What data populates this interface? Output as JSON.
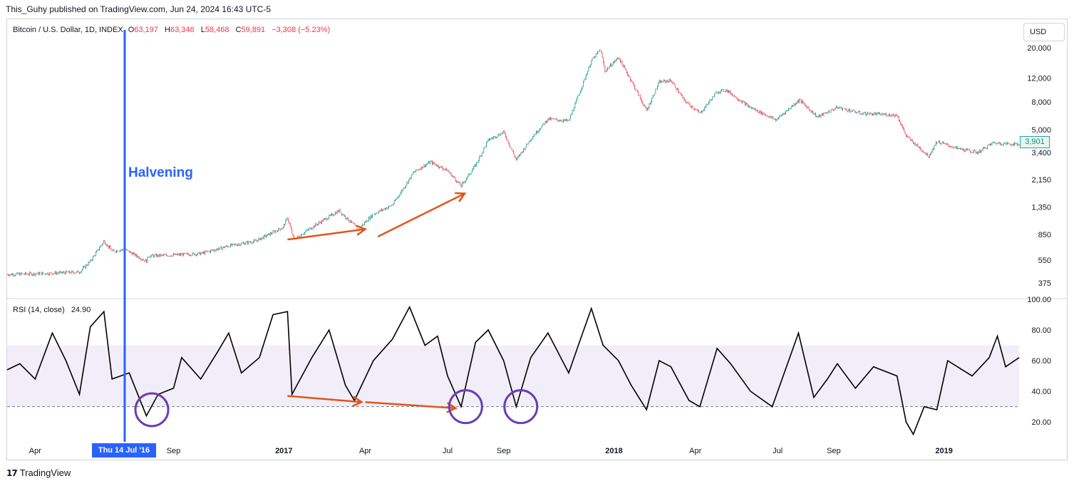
{
  "attribution": "This_Guhy published on TradingView.com, Jun 24, 2024 16:43 UTC-5",
  "symbol": {
    "name": "Bitcoin / U.S. Dollar, 1D, INDEX",
    "o_label": "O",
    "o_value": "63,197",
    "h_label": "H",
    "h_value": "63,346",
    "l_label": "L",
    "l_value": "58,468",
    "c_label": "C",
    "c_value": "59,891",
    "change": "−3,308 (−5.23%)"
  },
  "currency_button": "USD",
  "last_price_tag": "3,901",
  "annotation_halvening": "Halvening",
  "crosshair_date": "Thu 14 Jul '16",
  "rsi_legend": {
    "name": "RSI (14, close)",
    "value": "24.90"
  },
  "branding": "TradingView",
  "colors": {
    "accent": "#2962ff",
    "up": "#089981",
    "down": "#f23645",
    "arrow": "#e0561a",
    "circle": "#6a3db8"
  },
  "chart_data": [
    {
      "type": "candlestick",
      "title": "Bitcoin / U.S. Dollar, 1D, INDEX",
      "y_scale": "log",
      "ylim": [
        320,
        24000
      ],
      "y_ticks": [
        "20,000",
        "12,000",
        "8,000",
        "5,000",
        "3,400",
        "2,150",
        "1,350",
        "850",
        "550",
        "375"
      ],
      "y_tick_values": [
        20000,
        12000,
        8000,
        5000,
        3400,
        2150,
        1350,
        850,
        550,
        375
      ],
      "x_ticks": [
        "Apr",
        "Sep",
        "2017",
        "Apr",
        "Jul",
        "Sep",
        "2018",
        "Apr",
        "Jul",
        "Sep",
        "2019"
      ],
      "x_tick_dates": [
        "2016-04-01",
        "2016-09-01",
        "2017-01-01",
        "2017-04-01",
        "2017-07-01",
        "2017-09-01",
        "2018-01-01",
        "2018-04-01",
        "2018-07-01",
        "2018-09-01",
        "2019-01-01"
      ],
      "x_range": [
        "2016-03-01",
        "2019-03-25"
      ],
      "halvening_date": "2016-07-09",
      "close_path": [
        [
          "2016-03-01",
          432
        ],
        [
          "2016-04-15",
          440
        ],
        [
          "2016-05-20",
          450
        ],
        [
          "2016-06-01",
          540
        ],
        [
          "2016-06-16",
          760
        ],
        [
          "2016-06-25",
          640
        ],
        [
          "2016-07-09",
          660
        ],
        [
          "2016-08-02",
          540
        ],
        [
          "2016-08-04",
          590
        ],
        [
          "2016-09-01",
          600
        ],
        [
          "2016-10-01",
          615
        ],
        [
          "2016-11-01",
          700
        ],
        [
          "2016-12-01",
          760
        ],
        [
          "2016-12-31",
          960
        ],
        [
          "2017-01-05",
          1130
        ],
        [
          "2017-01-12",
          780
        ],
        [
          "2017-02-01",
          960
        ],
        [
          "2017-03-03",
          1270
        ],
        [
          "2017-03-24",
          930
        ],
        [
          "2017-04-10",
          1200
        ],
        [
          "2017-05-01",
          1400
        ],
        [
          "2017-05-25",
          2450
        ],
        [
          "2017-06-12",
          2900
        ],
        [
          "2017-07-01",
          2500
        ],
        [
          "2017-07-16",
          1930
        ],
        [
          "2017-08-01",
          2750
        ],
        [
          "2017-08-15",
          4200
        ],
        [
          "2017-09-01",
          4800
        ],
        [
          "2017-09-15",
          3000
        ],
        [
          "2017-10-01",
          4300
        ],
        [
          "2017-10-20",
          6000
        ],
        [
          "2017-11-12",
          5800
        ],
        [
          "2017-11-20",
          8000
        ],
        [
          "2017-12-07",
          16000
        ],
        [
          "2017-12-17",
          19500
        ],
        [
          "2017-12-22",
          13500
        ],
        [
          "2018-01-06",
          17000
        ],
        [
          "2018-01-20",
          11500
        ],
        [
          "2018-02-06",
          6900
        ],
        [
          "2018-02-20",
          11200
        ],
        [
          "2018-03-05",
          11500
        ],
        [
          "2018-03-20",
          8200
        ],
        [
          "2018-04-06",
          6600
        ],
        [
          "2018-04-25",
          9500
        ],
        [
          "2018-05-05",
          9800
        ],
        [
          "2018-05-30",
          7400
        ],
        [
          "2018-06-29",
          5900
        ],
        [
          "2018-07-25",
          8300
        ],
        [
          "2018-08-14",
          6200
        ],
        [
          "2018-09-05",
          7300
        ],
        [
          "2018-10-01",
          6600
        ],
        [
          "2018-11-10",
          6400
        ],
        [
          "2018-11-20",
          4500
        ],
        [
          "2018-12-15",
          3200
        ],
        [
          "2018-12-24",
          4100
        ],
        [
          "2019-01-15",
          3650
        ],
        [
          "2019-02-07",
          3400
        ],
        [
          "2019-02-24",
          4000
        ],
        [
          "2019-03-25",
          3901
        ]
      ],
      "last_price": 3901
    },
    {
      "type": "line",
      "title": "RSI (14, close)",
      "ylim": [
        8,
        100
      ],
      "y_ticks": [
        "100.00",
        "80.00",
        "60.00",
        "40.00",
        "20.00"
      ],
      "y_tick_values": [
        100,
        80,
        60,
        40,
        20
      ],
      "overbought": 70,
      "oversold": 30,
      "x_range": [
        "2016-03-01",
        "2019-03-25"
      ],
      "rsi_path": [
        [
          "2016-03-01",
          54
        ],
        [
          "2016-03-15",
          58
        ],
        [
          "2016-04-01",
          48
        ],
        [
          "2016-04-20",
          78
        ],
        [
          "2016-05-05",
          60
        ],
        [
          "2016-05-20",
          38
        ],
        [
          "2016-06-01",
          82
        ],
        [
          "2016-06-16",
          92
        ],
        [
          "2016-06-25",
          48
        ],
        [
          "2016-07-14",
          52
        ],
        [
          "2016-08-02",
          24
        ],
        [
          "2016-08-15",
          38
        ],
        [
          "2016-09-01",
          42
        ],
        [
          "2016-09-10",
          62
        ],
        [
          "2016-10-01",
          48
        ],
        [
          "2016-10-20",
          66
        ],
        [
          "2016-11-01",
          78
        ],
        [
          "2016-11-15",
          52
        ],
        [
          "2016-12-05",
          62
        ],
        [
          "2016-12-20",
          90
        ],
        [
          "2017-01-05",
          92
        ],
        [
          "2017-01-10",
          38
        ],
        [
          "2017-02-01",
          62
        ],
        [
          "2017-02-20",
          80
        ],
        [
          "2017-03-10",
          44
        ],
        [
          "2017-03-20",
          34
        ],
        [
          "2017-04-10",
          60
        ],
        [
          "2017-05-01",
          74
        ],
        [
          "2017-05-20",
          95
        ],
        [
          "2017-06-06",
          70
        ],
        [
          "2017-06-20",
          76
        ],
        [
          "2017-07-01",
          50
        ],
        [
          "2017-07-16",
          30
        ],
        [
          "2017-08-01",
          72
        ],
        [
          "2017-08-15",
          80
        ],
        [
          "2017-09-01",
          60
        ],
        [
          "2017-09-15",
          30
        ],
        [
          "2017-10-01",
          62
        ],
        [
          "2017-10-20",
          78
        ],
        [
          "2017-11-12",
          52
        ],
        [
          "2017-11-25",
          74
        ],
        [
          "2017-12-07",
          94
        ],
        [
          "2017-12-20",
          70
        ],
        [
          "2018-01-06",
          60
        ],
        [
          "2018-01-20",
          44
        ],
        [
          "2018-02-06",
          28
        ],
        [
          "2018-02-20",
          60
        ],
        [
          "2018-03-05",
          56
        ],
        [
          "2018-03-25",
          34
        ],
        [
          "2018-04-06",
          30
        ],
        [
          "2018-04-25",
          68
        ],
        [
          "2018-05-10",
          58
        ],
        [
          "2018-06-01",
          40
        ],
        [
          "2018-06-25",
          30
        ],
        [
          "2018-07-24",
          78
        ],
        [
          "2018-08-10",
          36
        ],
        [
          "2018-08-25",
          48
        ],
        [
          "2018-09-05",
          58
        ],
        [
          "2018-09-25",
          42
        ],
        [
          "2018-10-15",
          56
        ],
        [
          "2018-11-10",
          50
        ],
        [
          "2018-11-20",
          20
        ],
        [
          "2018-11-28",
          12
        ],
        [
          "2018-12-10",
          30
        ],
        [
          "2018-12-24",
          28
        ],
        [
          "2019-01-05",
          60
        ],
        [
          "2019-02-01",
          50
        ],
        [
          "2019-02-20",
          62
        ],
        [
          "2019-03-01",
          76
        ],
        [
          "2019-03-10",
          56
        ],
        [
          "2019-03-25",
          62
        ]
      ]
    }
  ]
}
